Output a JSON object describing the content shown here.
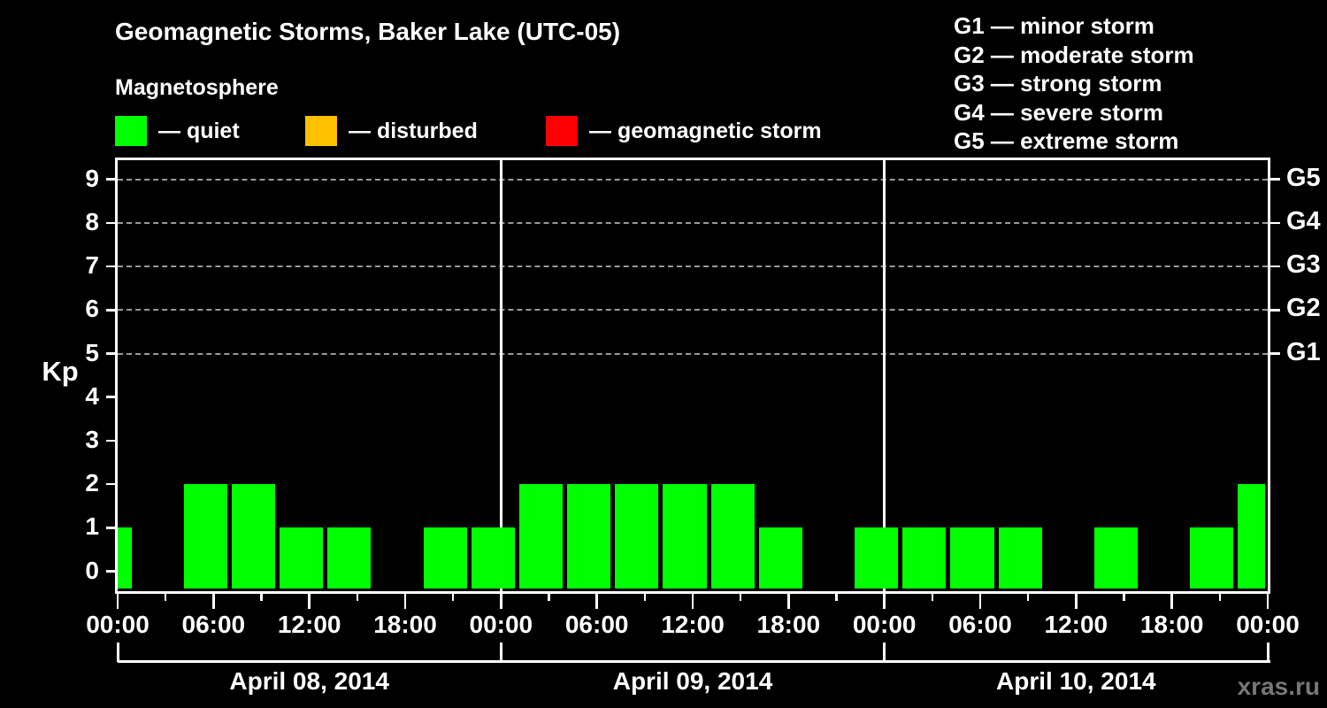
{
  "header": {
    "title": "Geomagnetic Storms, Baker Lake (UTC-05)",
    "subtitle": "Magnetosphere",
    "legend": [
      {
        "key": "quiet",
        "color": "#00ff00",
        "label": "— quiet"
      },
      {
        "key": "disturbed",
        "color": "#ffc000",
        "label": "— disturbed"
      },
      {
        "key": "storm",
        "color": "#ff0000",
        "label": "— geomagnetic storm"
      }
    ],
    "g_scale_legend": [
      "G1 — minor storm",
      "G2 — moderate storm",
      "G3 — strong storm",
      "G4 — severe storm",
      "G5 — extreme storm"
    ]
  },
  "watermark": "xras.ru",
  "chart_data": {
    "type": "bar",
    "title": "Geomagnetic Storms, Baker Lake (UTC-05)",
    "subtitle": "Magnetosphere",
    "ylabel": "Kp",
    "ylim": [
      0,
      9
    ],
    "yticks": [
      "0",
      "1",
      "2",
      "3",
      "4",
      "5",
      "6",
      "7",
      "8",
      "9"
    ],
    "right_axis_ticks": [
      {
        "label": "G5",
        "kp": 9
      },
      {
        "label": "G4",
        "kp": 8
      },
      {
        "label": "G3",
        "kp": 7
      },
      {
        "label": "G2",
        "kp": 6
      },
      {
        "label": "G1",
        "kp": 5
      }
    ],
    "grid_kp_levels": [
      5,
      6,
      7,
      8,
      9
    ],
    "bar_color": "#00ff00",
    "bar_interval_hours": 3,
    "x_axis": {
      "hours_span": [
        0,
        72
      ],
      "minor_tick_hours": 3,
      "labeled_tick_hours": 6,
      "tick_labels": [
        "00:00",
        "06:00",
        "12:00",
        "18:00",
        "00:00",
        "06:00",
        "12:00",
        "18:00",
        "00:00",
        "06:00",
        "12:00",
        "18:00",
        "00:00"
      ]
    },
    "days": [
      {
        "label": "April 08, 2014",
        "start_hour": 0
      },
      {
        "label": "April 09, 2014",
        "start_hour": 24
      },
      {
        "label": "April 10, 2014",
        "start_hour": 48
      }
    ],
    "bars": [
      {
        "start_hour": -2,
        "kp": 1
      },
      {
        "start_hour": 1,
        "kp": 0
      },
      {
        "start_hour": 4,
        "kp": 2
      },
      {
        "start_hour": 7,
        "kp": 2
      },
      {
        "start_hour": 10,
        "kp": 1
      },
      {
        "start_hour": 13,
        "kp": 1
      },
      {
        "start_hour": 16,
        "kp": 0
      },
      {
        "start_hour": 19,
        "kp": 1
      },
      {
        "start_hour": 22,
        "kp": 1
      },
      {
        "start_hour": 25,
        "kp": 2
      },
      {
        "start_hour": 28,
        "kp": 2
      },
      {
        "start_hour": 31,
        "kp": 2
      },
      {
        "start_hour": 34,
        "kp": 2
      },
      {
        "start_hour": 37,
        "kp": 2
      },
      {
        "start_hour": 40,
        "kp": 1
      },
      {
        "start_hour": 43,
        "kp": 0
      },
      {
        "start_hour": 46,
        "kp": 1
      },
      {
        "start_hour": 49,
        "kp": 1
      },
      {
        "start_hour": 52,
        "kp": 1
      },
      {
        "start_hour": 55,
        "kp": 1
      },
      {
        "start_hour": 58,
        "kp": 0
      },
      {
        "start_hour": 61,
        "kp": 1
      },
      {
        "start_hour": 64,
        "kp": 0
      },
      {
        "start_hour": 67,
        "kp": 1
      },
      {
        "start_hour": 70,
        "kp": 2
      }
    ]
  }
}
